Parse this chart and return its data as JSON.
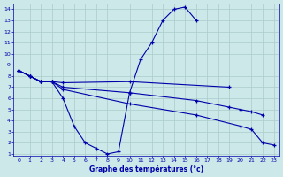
{
  "xlabel": "Graphe des températures (°c)",
  "bg_color": "#cce8e8",
  "line_color": "#0000aa",
  "grid_color": "#aacccc",
  "x_min": 0,
  "x_max": 23,
  "y_min": 1,
  "y_max": 14,
  "lines": [
    {
      "x": [
        0,
        1,
        2,
        3,
        4,
        5,
        6,
        7,
        8,
        9,
        10,
        11,
        12,
        13,
        14,
        15,
        16
      ],
      "y": [
        8.5,
        8.0,
        7.5,
        7.5,
        6.0,
        3.5,
        2.0,
        1.5,
        1.0,
        1.2,
        6.5,
        9.5,
        11.0,
        13.0,
        14.0,
        14.2,
        13.0
      ]
    },
    {
      "x": [
        0,
        1,
        2,
        3,
        4,
        10,
        19
      ],
      "y": [
        8.5,
        8.0,
        7.5,
        7.5,
        7.4,
        7.5,
        7.0
      ]
    },
    {
      "x": [
        0,
        1,
        2,
        3,
        4,
        10,
        16,
        19,
        20,
        21,
        22
      ],
      "y": [
        8.5,
        8.0,
        7.5,
        7.5,
        7.0,
        6.5,
        5.8,
        5.2,
        5.0,
        4.8,
        4.5
      ]
    },
    {
      "x": [
        0,
        1,
        2,
        3,
        4,
        10,
        16,
        20,
        21,
        22,
        23
      ],
      "y": [
        8.5,
        8.0,
        7.5,
        7.5,
        6.8,
        5.5,
        4.5,
        3.5,
        3.2,
        2.0,
        1.8
      ]
    }
  ]
}
